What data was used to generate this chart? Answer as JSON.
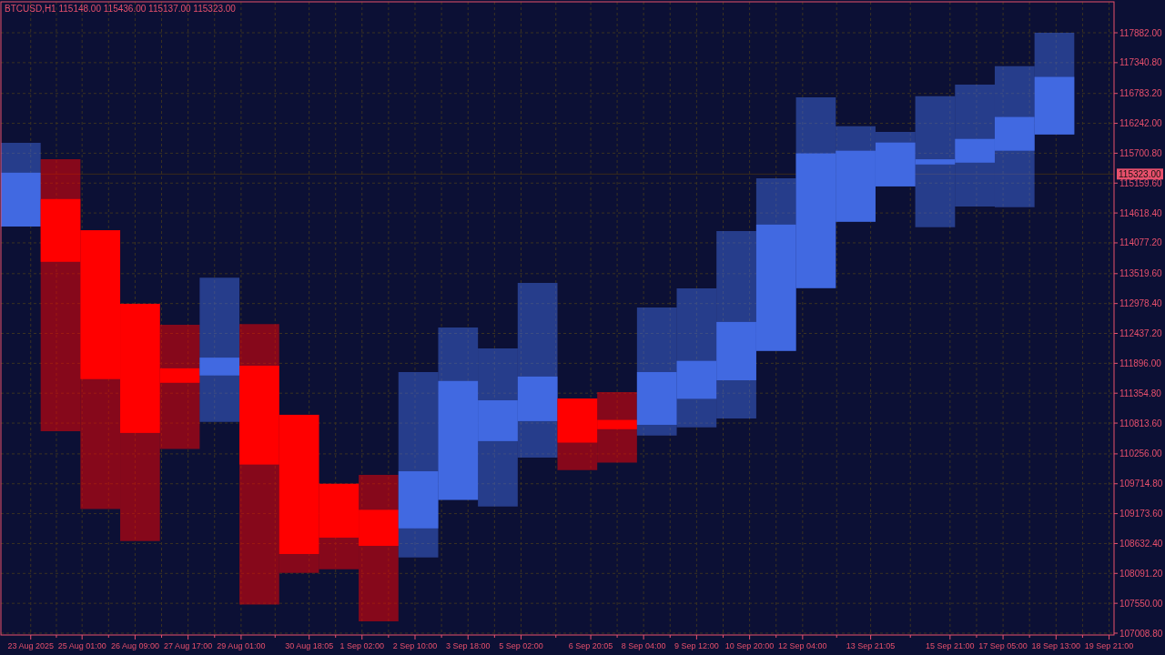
{
  "chart_data": {
    "type": "candlestick",
    "title": "BTCUSD,H1  115148.00 115436.00 115137.00 115323.00",
    "x": [
      "2025-08-23T12:00",
      "2025-08-24T12:00",
      "2025-08-25T12:00",
      "2025-08-26T12:00",
      "2025-08-27T12:00",
      "2025-08-28T12:00",
      "2025-08-29T12:00",
      "2025-08-30T12:00",
      "2025-08-31T12:00",
      "2025-09-01T12:00",
      "2025-09-02T12:00",
      "2025-09-03T12:00",
      "2025-09-04T12:00",
      "2025-09-05T12:00",
      "2025-09-06T12:00",
      "2025-09-07T12:00",
      "2025-09-08T12:00",
      "2025-09-09T12:00",
      "2025-09-10T12:00",
      "2025-09-11T12:00",
      "2025-09-12T12:00",
      "2025-09-13T12:00",
      "2025-09-14T12:00",
      "2025-09-15T12:00",
      "2025-09-16T12:00",
      "2025-09-17T12:00",
      "2025-09-18T12:00"
    ],
    "ohlc": [
      [
        114373,
        115887,
        114373,
        115348
      ],
      [
        114871,
        115591,
        110668,
        113734
      ],
      [
        114306,
        114306,
        109256,
        111610
      ],
      [
        112974,
        112974,
        108678,
        110635
      ],
      [
        111805,
        112592,
        110345,
        111543
      ],
      [
        111676,
        113446,
        110836,
        111999
      ],
      [
        111853,
        112605,
        107528,
        110063
      ],
      [
        110964,
        110964,
        108099,
        108442
      ],
      [
        109714,
        109714,
        108167,
        108739
      ],
      [
        109243,
        109876,
        107225,
        108590
      ],
      [
        108907,
        111737,
        108381,
        109941
      ],
      [
        109424,
        112544,
        109424,
        111576
      ],
      [
        110487,
        112167,
        109304,
        111226
      ],
      [
        110849,
        113352,
        110190,
        111656
      ],
      [
        111259,
        111259,
        109963,
        110460
      ],
      [
        110871,
        111375,
        110096,
        110703
      ],
      [
        110782,
        112907,
        110587,
        111737
      ],
      [
        111253,
        113251,
        110735,
        111940
      ],
      [
        111589,
        114292,
        110897,
        112645
      ],
      [
        112121,
        115248,
        112121,
        114408
      ],
      [
        113258,
        116714,
        113258,
        115698
      ],
      [
        114460,
        116189,
        114460,
        115746
      ],
      [
        115100,
        116088,
        115100,
        115894
      ],
      [
        115497,
        116734,
        114360,
        115591
      ],
      [
        115530,
        116942,
        114737,
        115960
      ],
      [
        115746,
        117278,
        114722,
        116357
      ],
      [
        116040,
        117882,
        116040,
        117083
      ]
    ],
    "colors": [
      "#4169e1",
      "#ff0000",
      "#ff0000",
      "#ff0000",
      "#ff0000",
      "#4169e1",
      "#ff0000",
      "#ff0000",
      "#ff0000",
      "#ff0000",
      "#4169e1",
      "#4169e1",
      "#4169e1",
      "#4169e1",
      "#ff0000",
      "#ff0000",
      "#4169e1",
      "#4169e1",
      "#4169e1",
      "#4169e1",
      "#4169e1",
      "#4169e1",
      "#4169e1",
      "#4169e1",
      "#4169e1",
      "#4169e1",
      "#4169e1"
    ],
    "xlim": [
      "2025-08-23T00:00",
      "2025-09-20T00:00"
    ],
    "xticks": [
      {
        "value": "2025-08-23T18:00",
        "label": "23 Aug 2025"
      },
      {
        "value": "2025-08-25T01:00",
        "label": "25 Aug 01:00"
      },
      {
        "value": "2025-08-26T09:00",
        "label": "26 Aug 09:00"
      },
      {
        "value": "2025-08-27T17:00",
        "label": "27 Aug 17:00"
      },
      {
        "value": "2025-08-29T01:00",
        "label": "29 Aug 01:00"
      },
      {
        "value": "2025-08-30T18:05",
        "label": "30 Aug 18:05"
      },
      {
        "value": "2025-09-01T02:00",
        "label": "1 Sep 02:00"
      },
      {
        "value": "2025-09-02T10:00",
        "label": "2 Sep 10:00"
      },
      {
        "value": "2025-09-03T18:00",
        "label": "3 Sep 18:00"
      },
      {
        "value": "2025-09-05T02:00",
        "label": "5 Sep 02:00"
      },
      {
        "value": "2025-09-06T20:05",
        "label": "6 Sep 20:05"
      },
      {
        "value": "2025-09-08T04:00",
        "label": "8 Sep 04:00"
      },
      {
        "value": "2025-09-09T12:00",
        "label": "9 Sep 12:00"
      },
      {
        "value": "2025-09-10T20:00",
        "label": "10 Sep 20:00"
      },
      {
        "value": "2025-09-12T04:00",
        "label": "12 Sep 04:00"
      },
      {
        "value": "2025-09-13T21:05",
        "label": "13 Sep 21:05"
      },
      {
        "value": "2025-09-15T21:00",
        "label": "15 Sep 21:00"
      },
      {
        "value": "2025-09-17T05:00",
        "label": "17 Sep 05:00"
      },
      {
        "value": "2025-09-18T13:00",
        "label": "18 Sep 13:00"
      },
      {
        "value": "2025-09-19T21:00",
        "label": "19 Sep 21:00"
      }
    ],
    "ylim": [
      106976,
      118426
    ],
    "yticks": [
      {
        "value": 107008.8,
        "label": "107008.80"
      },
      {
        "value": 107550,
        "label": "107550.00"
      },
      {
        "value": 108091.2,
        "label": "108091.20"
      },
      {
        "value": 108632.4,
        "label": "108632.40"
      },
      {
        "value": 109173.6,
        "label": "109173.60"
      },
      {
        "value": 109714.8,
        "label": "109714.80"
      },
      {
        "value": 110256,
        "label": "110256.00"
      },
      {
        "value": 110813.6,
        "label": "110813.60"
      },
      {
        "value": 111354.8,
        "label": "111354.80"
      },
      {
        "value": 111896,
        "label": "111896.00"
      },
      {
        "value": 112437.2,
        "label": "112437.20"
      },
      {
        "value": 112978.4,
        "label": "112978.40"
      },
      {
        "value": 113519.6,
        "label": "113519.60"
      },
      {
        "value": 114077.2,
        "label": "114077.20"
      },
      {
        "value": 114618.4,
        "label": "114618.40"
      },
      {
        "value": 115159.6,
        "label": "115159.60"
      },
      {
        "value": 115700.8,
        "label": "115700.80"
      },
      {
        "value": 116242,
        "label": "116242.00"
      },
      {
        "value": 116783.2,
        "label": "116783.20"
      },
      {
        "value": 117340.8,
        "label": "117340.80"
      },
      {
        "value": 117882,
        "label": "117882.00"
      }
    ],
    "ref_lines": [
      {
        "axis": "y",
        "value": 115323,
        "label": "115323.00",
        "color": "#3a2a1a"
      }
    ],
    "grid": true
  }
}
